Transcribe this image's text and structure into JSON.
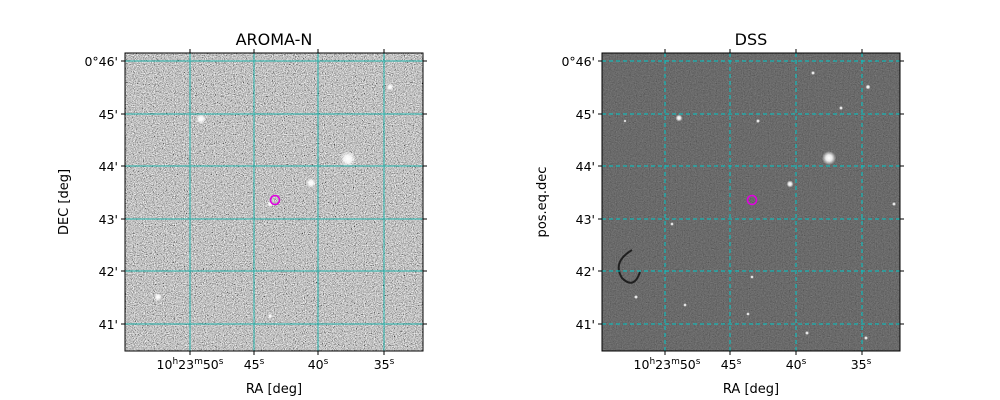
{
  "panels": [
    {
      "title": "AROMA-N",
      "xlabel": "RA [deg]",
      "ylabel": "DEC [deg]",
      "style": "noisy",
      "grid_color": "#20b2aa",
      "grid_style": "solid",
      "marker_color": "#e000e0",
      "dec_ticks": [
        "0°46'",
        "45'",
        "44'",
        "43'",
        "42'",
        "41'"
      ],
      "ra_ticks": [
        {
          "main": "10",
          "sup1": "h",
          "mid": "23",
          "sup2": "m",
          "end": "50",
          "sup3": "s"
        },
        {
          "main": "",
          "sup1": "",
          "mid": "",
          "sup2": "",
          "end": "45",
          "sup3": "s"
        },
        {
          "main": "",
          "sup1": "",
          "mid": "",
          "sup2": "",
          "end": "40",
          "sup3": "s"
        },
        {
          "main": "",
          "sup1": "",
          "mid": "",
          "sup2": "",
          "end": "35",
          "sup3": "s"
        }
      ]
    },
    {
      "title": "DSS",
      "xlabel": "RA [deg]",
      "ylabel": "pos.eq.dec",
      "style": "dark",
      "grid_color": "#00c8c8",
      "grid_style": "dashed",
      "marker_color": "#e000e0",
      "dec_ticks": [
        "0°46'",
        "45'",
        "44'",
        "43'",
        "42'",
        "41'"
      ],
      "ra_ticks": [
        {
          "main": "10",
          "sup1": "h",
          "mid": "23",
          "sup2": "m",
          "end": "50",
          "sup3": "s"
        },
        {
          "main": "",
          "sup1": "",
          "mid": "",
          "sup2": "",
          "end": "45",
          "sup3": "s"
        },
        {
          "main": "",
          "sup1": "",
          "mid": "",
          "sup2": "",
          "end": "40",
          "sup3": "s"
        },
        {
          "main": "",
          "sup1": "",
          "mid": "",
          "sup2": "",
          "end": "35",
          "sup3": "s"
        }
      ]
    }
  ]
}
